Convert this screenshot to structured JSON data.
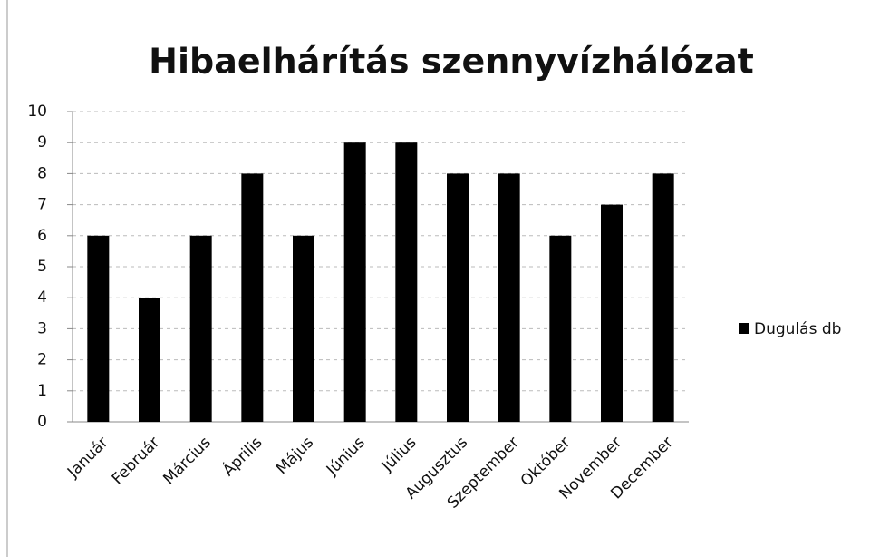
{
  "chart_data": {
    "type": "bar",
    "title": "Hibaelhárítás szennyvízhálózat",
    "categories": [
      "Január",
      "Február",
      "Március",
      "Április",
      "Május",
      "Június",
      "Július",
      "Augusztus",
      "Szeptember",
      "Október",
      "November",
      "December"
    ],
    "series": [
      {
        "name": "Dugulás db",
        "color": "#000000",
        "values": [
          6,
          4,
          6,
          8,
          6,
          9,
          9,
          8,
          8,
          6,
          7,
          8
        ]
      }
    ],
    "ylim": [
      0,
      10
    ],
    "yticks": [
      0,
      1,
      2,
      3,
      4,
      5,
      6,
      7,
      8,
      9,
      10
    ],
    "grid": true,
    "legend": "right"
  }
}
